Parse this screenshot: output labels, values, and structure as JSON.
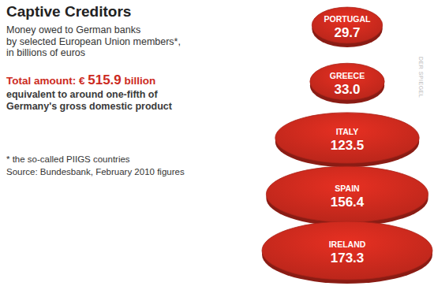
{
  "chart_data": {
    "type": "ellipse",
    "title": "Captive Creditors",
    "subtitle": [
      "Money owed to German banks",
      "by selected European Union members*,",
      "in billions of euros"
    ],
    "total": {
      "prefix": "Total amount: €",
      "value": 515.9,
      "suffix": "billion"
    },
    "annotations": [
      "equivalent to around one-fifth of",
      "Germany's gross domestic product"
    ],
    "footnote": "* the so-called PIIGS countries",
    "source": "Source: Bundesbank, February 2010 figures",
    "credit": "DER SPIEGEL",
    "categories": [
      "PORTUGAL",
      "GREECE",
      "ITALY",
      "SPAIN",
      "IRELAND"
    ],
    "values": [
      29.7,
      33.0,
      123.5,
      156.4,
      173.3
    ],
    "value_labels": [
      "29.7",
      "33.0",
      "123.5",
      "156.4",
      "173.3"
    ],
    "data_labels": true,
    "color": "#cc2a1e"
  }
}
